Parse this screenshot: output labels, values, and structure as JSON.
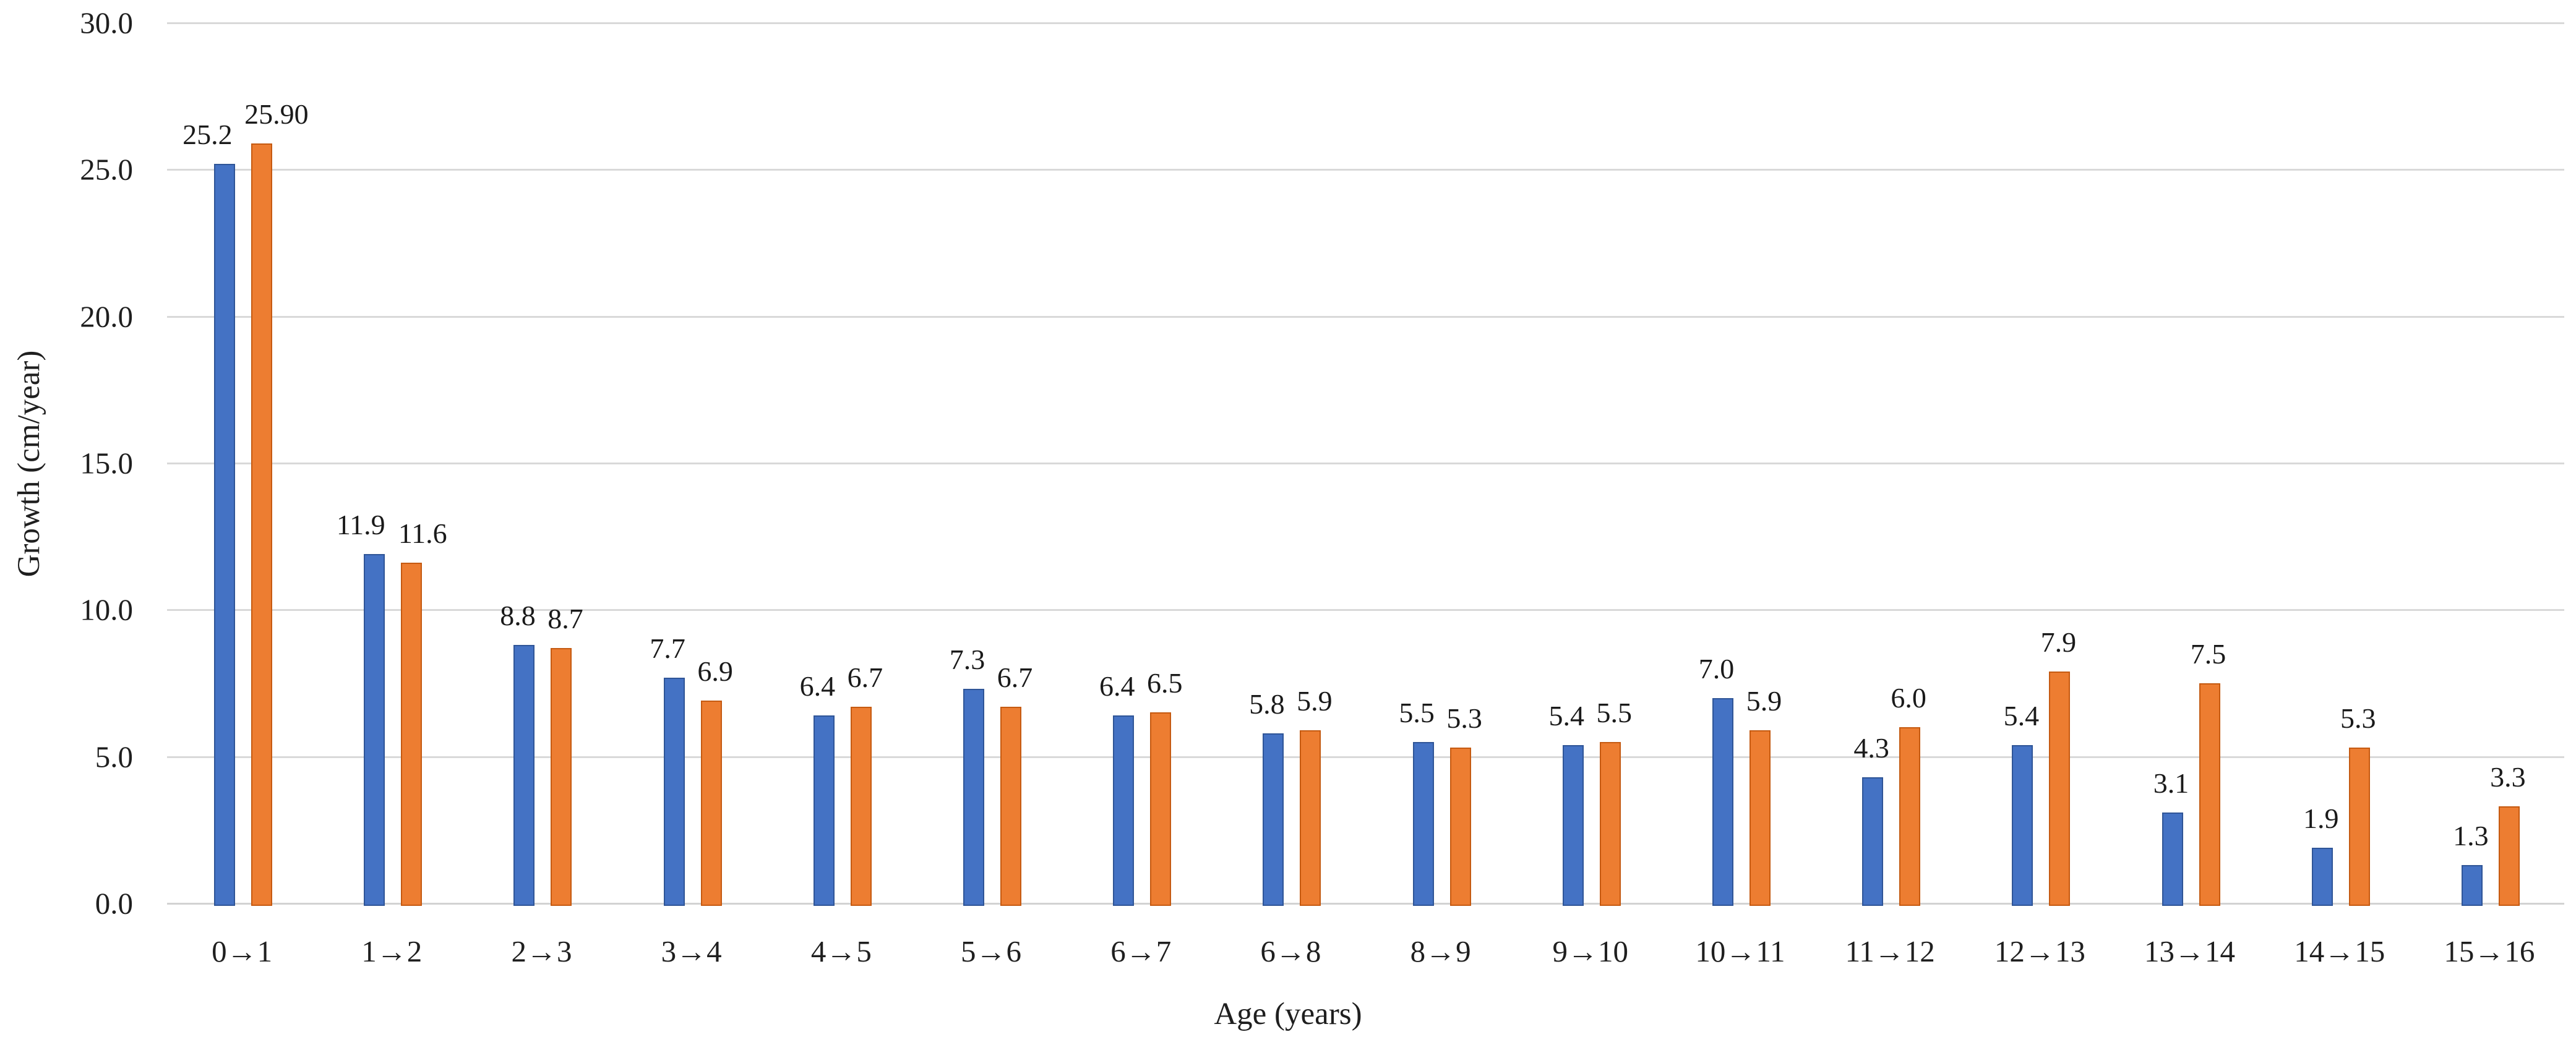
{
  "chart_data": {
    "type": "bar",
    "title": "",
    "xlabel": "Age (years)",
    "ylabel": "Growth (cm/year)",
    "categories": [
      "0→1",
      "1→2",
      "2→3",
      "3→4",
      "4→5",
      "5→6",
      "6→7",
      "6→8",
      "8→9",
      "9→10",
      "10→11",
      "11→12",
      "12→13",
      "13→14",
      "14→15",
      "15→16"
    ],
    "series": [
      {
        "name": "series-blue",
        "color": "#4472c4",
        "border_color": "#2f5597",
        "values": [
          25.2,
          11.9,
          8.8,
          7.7,
          6.4,
          7.3,
          6.4,
          5.8,
          5.5,
          5.4,
          7.0,
          4.3,
          5.4,
          3.1,
          1.9,
          1.3
        ],
        "labels": [
          "25.2",
          "11.9",
          "8.8",
          "7.7",
          "6.4",
          "7.3",
          "6.4",
          "5.8",
          "5.5",
          "5.4",
          "7.0",
          "4.3",
          "5.4",
          "3.1",
          "1.9",
          "1.3"
        ]
      },
      {
        "name": "series-orange",
        "color": "#ed7d31",
        "border_color": "#c55a11",
        "values": [
          25.9,
          11.6,
          8.7,
          6.9,
          6.7,
          6.7,
          6.5,
          5.9,
          5.3,
          5.5,
          5.9,
          6.0,
          7.9,
          7.5,
          5.3,
          3.3
        ],
        "labels": [
          "25.90",
          "11.6",
          "8.7",
          "6.9",
          "6.7",
          "6.7",
          "6.5",
          "5.9",
          "5.3",
          "5.5",
          "5.9",
          "6.0",
          "7.9",
          "7.5",
          "5.3",
          "3.3"
        ]
      }
    ],
    "y_ticks": [
      "30.0",
      "25.0",
      "20.0",
      "15.0",
      "10.0",
      "5.0",
      "0.0"
    ],
    "ylim": [
      0,
      30
    ],
    "grid": true,
    "gridline_color": "#d9d9d9",
    "legend": "none",
    "data_labels": "outside-end"
  }
}
